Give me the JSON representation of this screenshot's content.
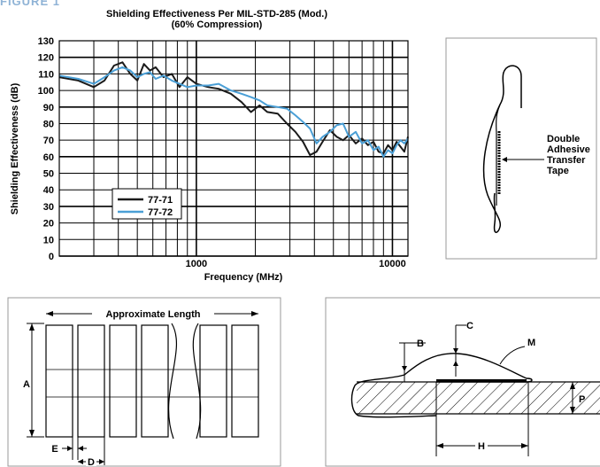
{
  "figure_label": "FIGURE 1",
  "chart_data": {
    "type": "line",
    "title": "Shielding Effectiveness Per MIL-STD-285 (Mod.)",
    "subtitle": "(60% Compression)",
    "xlabel": "Frequency (MHz)",
    "ylabel": "Shielding Effectiveness (dB)",
    "x_scale": "log",
    "xlim": [
      200,
      12000
    ],
    "ylim": [
      0,
      130
    ],
    "grid": true,
    "x_tick_labels": [
      {
        "value": 1000,
        "label": "1000"
      },
      {
        "value": 10000,
        "label": "10000"
      }
    ],
    "y_ticks": [
      0,
      10,
      20,
      30,
      40,
      50,
      60,
      70,
      80,
      90,
      100,
      110,
      120,
      130
    ],
    "legend_position": "lower-left",
    "series": [
      {
        "name": "77-71",
        "color": "#1a1a1a",
        "x": [
          200,
          250,
          300,
          340,
          380,
          420,
          460,
          500,
          540,
          580,
          620,
          680,
          750,
          820,
          900,
          1000,
          1150,
          1300,
          1500,
          1700,
          1900,
          2100,
          2300,
          2600,
          2900,
          3200,
          3500,
          3800,
          4100,
          4400,
          4800,
          5200,
          5600,
          6000,
          6500,
          7000,
          7500,
          8000,
          8500,
          9000,
          9500,
          10000,
          10500,
          11000,
          11500,
          12000
        ],
        "y": [
          108,
          106,
          102,
          106,
          115,
          117,
          110,
          106,
          116,
          112,
          114,
          108,
          110,
          102,
          108,
          104,
          102,
          101,
          98,
          93,
          87,
          91,
          87,
          86,
          80,
          75,
          69,
          61,
          63,
          69,
          76,
          72,
          70,
          73,
          68,
          71,
          67,
          69,
          63,
          62,
          67,
          64,
          69,
          66,
          63,
          72
        ]
      },
      {
        "name": "77-72",
        "color": "#4a9fd6",
        "x": [
          200,
          250,
          300,
          340,
          380,
          420,
          460,
          500,
          540,
          580,
          620,
          680,
          750,
          820,
          900,
          1000,
          1150,
          1300,
          1500,
          1700,
          1900,
          2100,
          2300,
          2600,
          2900,
          3200,
          3500,
          3800,
          4100,
          4400,
          4800,
          5200,
          5600,
          6000,
          6500,
          7000,
          7500,
          8000,
          8500,
          9000,
          9500,
          10000,
          10500,
          11000,
          11500,
          12000
        ],
        "y": [
          109,
          107,
          104,
          108,
          112,
          114,
          112,
          108,
          110,
          111,
          107,
          109,
          106,
          104,
          102,
          103,
          103,
          104,
          100,
          98,
          96,
          94,
          91,
          90,
          89,
          85,
          81,
          77,
          68,
          72,
          75,
          79,
          80,
          72,
          75,
          68,
          70,
          64,
          66,
          60,
          64,
          62,
          67,
          70,
          68,
          71
        ]
      }
    ]
  },
  "side_diagram": {
    "annotation": [
      "Double",
      "Adhesive",
      "Transfer",
      "Tape"
    ]
  },
  "dimension_diagram": {
    "length_label": "Approximate Length",
    "label_a": "A",
    "label_e": "E",
    "label_d": "D"
  },
  "cross_section_diagram": {
    "label_b": "B",
    "label_c": "C",
    "label_m": "M",
    "label_p": "P",
    "label_h": "H"
  }
}
